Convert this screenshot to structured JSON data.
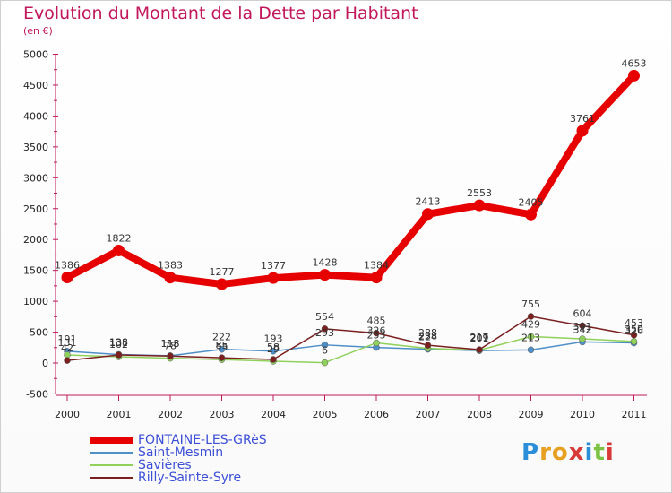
{
  "title": "Evolution du Montant de la Dette par Habitant",
  "unit": "(en €)",
  "brand": {
    "letters": [
      {
        "ch": "P",
        "color": "#2a8fd8"
      },
      {
        "ch": "r",
        "color": "#e8a020"
      },
      {
        "ch": "o",
        "color": "#e8a020"
      },
      {
        "ch": "x",
        "color": "#d83a3a"
      },
      {
        "ch": "i",
        "color": "#2a8fd8"
      },
      {
        "ch": "t",
        "color": "#7cc243"
      },
      {
        "ch": "i",
        "color": "#d83a3a"
      }
    ]
  },
  "chart_data": {
    "type": "line",
    "title": "Evolution du Montant de la Dette par Habitant",
    "ylabel": "(en €)",
    "x": [
      "2000",
      "2001",
      "2002",
      "2003",
      "2004",
      "2005",
      "2006",
      "2007",
      "2008",
      "2009",
      "2010",
      "2011"
    ],
    "ylim": [
      -500,
      5000
    ],
    "yticks": [
      -500,
      0,
      500,
      1000,
      1500,
      2000,
      2500,
      3000,
      3500,
      4000,
      4500,
      5000
    ],
    "grid": false,
    "legend": "bottom",
    "series": [
      {
        "name": "FONTAINE-LES-GRèS",
        "color": "#e60000",
        "values": [
          1386,
          1822,
          1383,
          1277,
          1377,
          1428,
          1384,
          2413,
          2553,
          2405,
          3761,
          4653
        ],
        "labels": [
          "1386",
          "1822",
          "1383",
          "1277",
          "1377",
          "1428",
          "1384",
          "2413",
          "2553",
          "2405",
          "3761",
          "4653"
        ]
      },
      {
        "name": "Saint-Mesmin",
        "color": "#4e8fc8",
        "values": [
          191,
          138,
          118,
          222,
          193,
          293,
          253,
          224,
          201,
          213,
          342,
          326
        ],
        "labels": [
          "191",
          "138",
          "118",
          "222",
          "193",
          "293",
          "253",
          "224",
          "201",
          "213",
          "342",
          "326"
        ]
      },
      {
        "name": "Savières",
        "color": "#8fd15a",
        "values": [
          131,
          102,
          78,
          55,
          29,
          6,
          326,
          238,
          209,
          429,
          391,
          350
        ],
        "labels": [
          "131",
          "102",
          "78",
          "55",
          "29",
          "6",
          "326",
          "238",
          "209",
          "429",
          "391",
          "350"
        ]
      },
      {
        "name": "Rilly-Sainte-Syre",
        "color": "#7b1f1f",
        "values": [
          42,
          131,
          113,
          85,
          58,
          554,
          485,
          288,
          217,
          755,
          604,
          453
        ],
        "labels": [
          "42",
          "131",
          "113",
          "85",
          "58",
          "554",
          "485",
          "288",
          "217",
          "755",
          "604",
          "453"
        ]
      }
    ]
  }
}
